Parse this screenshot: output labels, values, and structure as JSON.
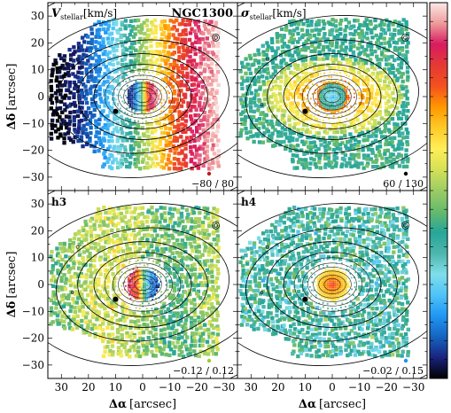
{
  "figure": {
    "galaxy": "NGC1300",
    "xlabel_delta": "Δα",
    "ylabel_delta": "Δδ",
    "unit": "[arcsec]",
    "x_ticks": [
      "30",
      "20",
      "10",
      "0",
      "−10",
      "−20",
      "−30"
    ],
    "y_ticks": [
      "30",
      "20",
      "10",
      "0",
      "−10",
      "−20",
      "−30"
    ]
  },
  "chart_data": [
    {
      "type": "heatmap",
      "panel": "V_stellar",
      "title_symbol": "V",
      "title_sub": "stellar",
      "title_unit": "[km/s]",
      "range_label": "−80 / 80",
      "vmin": -80,
      "vmax": 80,
      "x_range": [
        35,
        -35
      ],
      "y_range": [
        -35,
        35
      ],
      "pattern": "rotation",
      "marker_color": "#b22222"
    },
    {
      "type": "heatmap",
      "panel": "sigma_stellar",
      "title_symbol": "σ",
      "title_sub": "stellar",
      "title_unit": "[km/s]",
      "range_label": "60 / 130",
      "vmin": 60,
      "vmax": 130,
      "x_range": [
        35,
        -35
      ],
      "y_range": [
        -35,
        35
      ],
      "pattern": "dispersion",
      "marker_color": "#000000"
    },
    {
      "type": "heatmap",
      "panel": "h3",
      "title_symbol": "h3",
      "title_sub": "",
      "title_unit": "",
      "range_label": "−0.12 / 0.12",
      "vmin": -0.12,
      "vmax": 0.12,
      "x_range": [
        35,
        -35
      ],
      "y_range": [
        -35,
        35
      ],
      "pattern": "h3",
      "marker_color": "#9acd32"
    },
    {
      "type": "heatmap",
      "panel": "h4",
      "title_symbol": "h4",
      "title_sub": "",
      "title_unit": "",
      "range_label": "−0.02 / 0.15",
      "vmin": -0.02,
      "vmax": 0.15,
      "x_range": [
        35,
        -35
      ],
      "y_range": [
        -35,
        35
      ],
      "pattern": "h4",
      "marker_color": "#1e90ff"
    }
  ],
  "colorbar": {
    "colors": [
      "#000000",
      "#1a237e",
      "#1565c0",
      "#2196f3",
      "#4fc3f7",
      "#80deea",
      "#4db6ac",
      "#26a69a",
      "#66bb6a",
      "#9ccc65",
      "#d4e157",
      "#ffee58",
      "#ffca28",
      "#ff9800",
      "#f4511e",
      "#e53935",
      "#d81b60",
      "#ef9a9a",
      "#fbe9e7"
    ]
  }
}
